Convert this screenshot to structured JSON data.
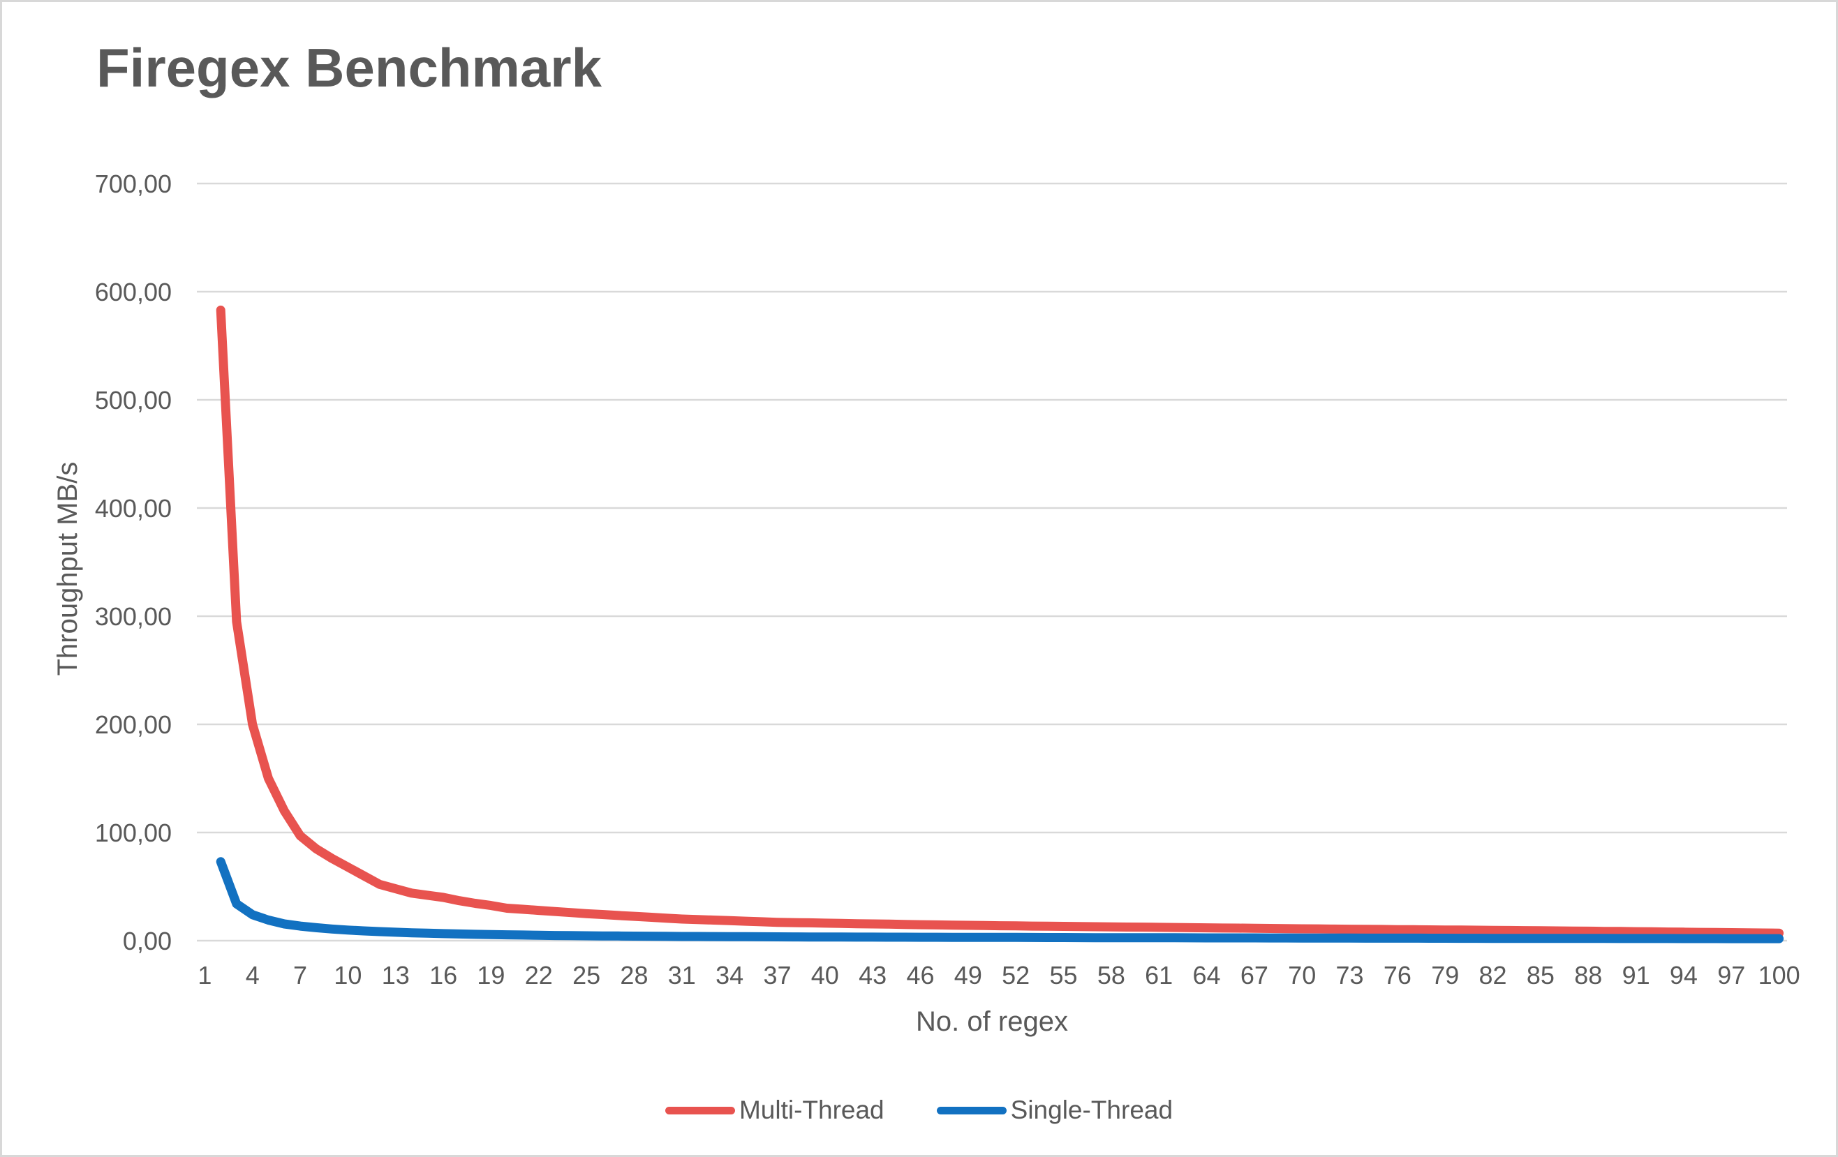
{
  "window": {
    "background": "#ffffff",
    "border_color": "#d8d8d8"
  },
  "chart_data": {
    "type": "line",
    "title": "Firegex Benchmark",
    "xlabel": "No. of regex",
    "ylabel": "Throughput MB/s",
    "ylim": [
      0,
      700
    ],
    "xlim": [
      1,
      100
    ],
    "grid": "horizontal",
    "gridline_color": "#d9d9d9",
    "text_color": "#595959",
    "decimal_separator": ",",
    "legend_position": "bottom",
    "y_tick_labels": [
      "700,00",
      "600,00",
      "500,00",
      "400,00",
      "300,00",
      "200,00",
      "100,00",
      "0,00"
    ],
    "x_tick_labels": [
      1,
      4,
      7,
      10,
      13,
      16,
      19,
      22,
      25,
      28,
      31,
      34,
      37,
      40,
      43,
      46,
      49,
      52,
      55,
      58,
      61,
      64,
      67,
      70,
      73,
      76,
      79,
      82,
      85,
      88,
      91,
      94,
      97,
      100
    ],
    "series": [
      {
        "name": "Multi-Thread",
        "color": "#e8534f",
        "x_start": 2,
        "x_step": 1,
        "values": [
          583,
          295,
          200,
          150,
          120,
          97,
          85,
          76,
          68,
          60,
          52,
          48,
          44,
          42,
          40,
          37,
          34.5,
          32.5,
          30,
          29,
          28,
          27,
          26,
          25,
          24.2,
          23.3,
          22.5,
          21.7,
          20.8,
          20,
          19.5,
          19,
          18.5,
          18,
          17.5,
          17,
          16.7,
          16.5,
          16.2,
          16,
          15.7,
          15.5,
          15.3,
          15,
          14.8,
          14.6,
          14.4,
          14.2,
          14,
          13.8,
          13.7,
          13.5,
          13.4,
          13.2,
          13.1,
          12.9,
          12.8,
          12.6,
          12.5,
          12.3,
          12.2,
          12,
          11.9,
          11.7,
          11.6,
          11.4,
          11.3,
          11.1,
          11,
          10.9,
          10.7,
          10.6,
          10.5,
          10.4,
          10.2,
          10.1,
          10,
          9.9,
          9.8,
          9.7,
          9.5,
          9.4,
          9.3,
          9.2,
          9,
          8.9,
          8.8,
          8.6,
          8.5,
          8.3,
          8.2,
          8,
          7.9,
          7.7,
          7.6,
          7.4,
          7.3,
          7.1,
          7
        ]
      },
      {
        "name": "Single-Thread",
        "color": "#1271c1",
        "x_start": 2,
        "x_step": 1,
        "values": [
          73,
          34,
          24,
          19,
          15.5,
          13.5,
          12,
          10.8,
          9.8,
          9,
          8.4,
          7.8,
          7.3,
          6.9,
          6.5,
          6.2,
          5.9,
          5.6,
          5.4,
          5.2,
          5,
          4.8,
          4.65,
          4.5,
          4.4,
          4.3,
          4.2,
          4.1,
          4,
          3.9,
          3.85,
          3.8,
          3.7,
          3.65,
          3.6,
          3.55,
          3.5,
          3.45,
          3.4,
          3.35,
          3.3,
          3.28,
          3.25,
          3.2,
          3.18,
          3.15,
          3.1,
          3.08,
          3.05,
          3,
          3,
          2.95,
          2.9,
          2.9,
          2.85,
          2.8,
          2.8,
          2.75,
          2.75,
          2.7,
          2.7,
          2.65,
          2.6,
          2.6,
          2.55,
          2.55,
          2.5,
          2.5,
          2.45,
          2.45,
          2.4,
          2.4,
          2.35,
          2.35,
          2.3,
          2.3,
          2.25,
          2.25,
          2.2,
          2.2,
          2.15,
          2.15,
          2.1,
          2.1,
          2.1,
          2.05,
          2.05,
          2.05,
          2,
          2,
          2,
          2,
          1.95,
          1.95,
          1.95,
          1.9,
          1.9,
          1.9,
          1.9
        ]
      }
    ]
  }
}
